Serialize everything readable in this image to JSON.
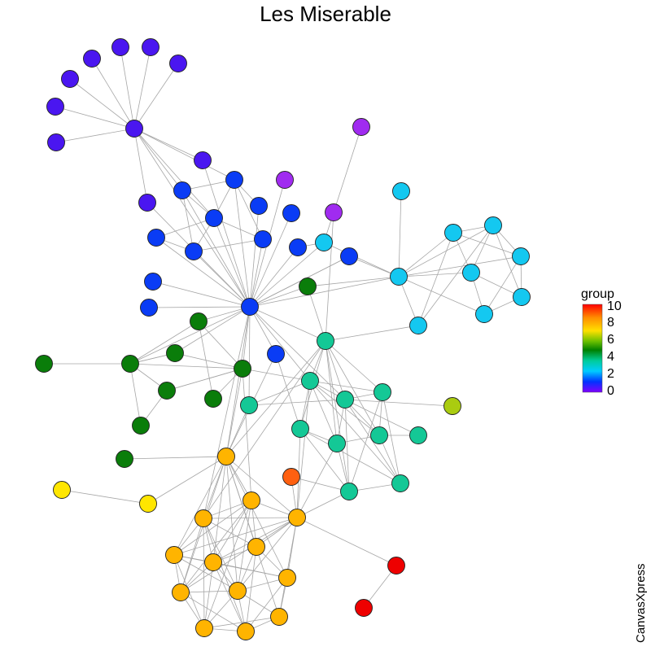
{
  "title": "Les Miserable",
  "legend": {
    "title": "group",
    "ticks": [
      "10",
      "8",
      "6",
      "4",
      "2",
      "0"
    ],
    "gradient": [
      "#ff0000",
      "#ff8c00",
      "#ffd700",
      "#99cc00",
      "#008000",
      "#00cc99",
      "#00ccff",
      "#0066ff",
      "#0000ff",
      "#7f00ff"
    ]
  },
  "watermark": "CanvasXpress",
  "group_colors": {
    "0": "#4a16f0",
    "1": "#0a3cf5",
    "2": "#14c8f0",
    "3": "#0a7d0a",
    "4": "#14c896",
    "5": "#ffb400",
    "6": "#ffe600",
    "7": "#a02bf0",
    "8": "#ff6010",
    "9": "#aacc10",
    "10": "#ee0000"
  }
}
